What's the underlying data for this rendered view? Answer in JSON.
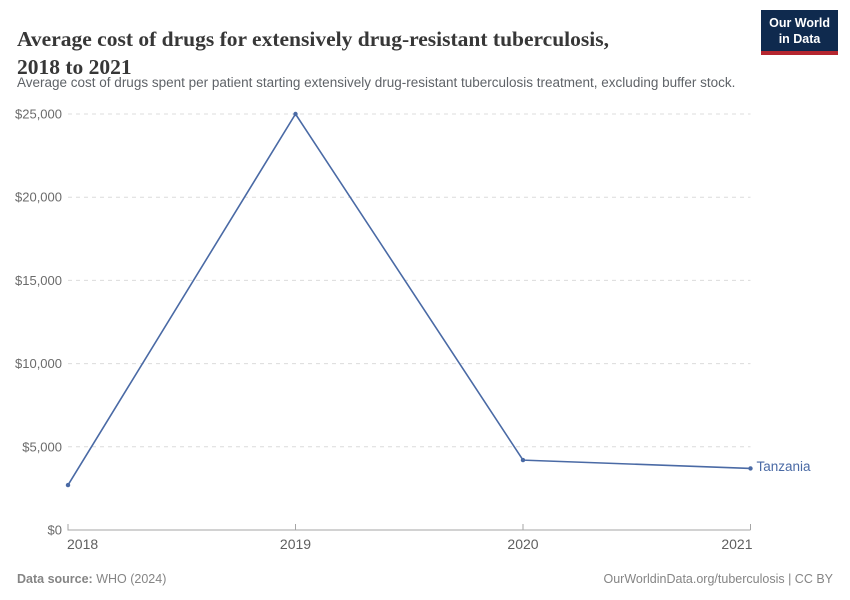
{
  "header": {
    "title_full": "Average cost of drugs for extensively drug-resistant tuberculosis, 2018 to 2021",
    "title_lines": [
      "Average cost of drugs for extensively drug-resistant tuberculosis,",
      "2018 to 2021"
    ],
    "subtitle": "Average cost of drugs spent per patient starting extensively drug-resistant tuberculosis treatment, excluding buffer stock.",
    "logo": {
      "line1": "Our World",
      "line2": "in Data",
      "bg_color": "#0f2a4e",
      "stripe_color": "#b5262f"
    }
  },
  "chart_data": {
    "type": "line",
    "title": "Average cost of drugs for extensively drug-resistant tuberculosis, 2018 to 2021",
    "x": [
      2018,
      2019,
      2020,
      2021
    ],
    "xtick_labels": [
      "2018",
      "2019",
      "2020",
      "2021"
    ],
    "series": [
      {
        "name": "Tanzania",
        "color": "#4a6aa5",
        "values": [
          2700,
          25000,
          4200,
          3700
        ]
      }
    ],
    "ylim": [
      0,
      25000
    ],
    "yticks": [
      0,
      5000,
      10000,
      15000,
      20000,
      25000
    ],
    "ytick_labels": [
      "$0",
      "$5,000",
      "$10,000",
      "$15,000",
      "$20,000",
      "$25,000"
    ],
    "grid": "horizontal-dashed",
    "gridline_color": "#dcdcdc",
    "axis_color": "#a5a5a5",
    "legend_position": "end-of-line"
  },
  "footer": {
    "source_label": "Data source:",
    "source_value": "WHO (2024)",
    "credit": "OurWorldinData.org/tuberculosis | CC BY"
  }
}
